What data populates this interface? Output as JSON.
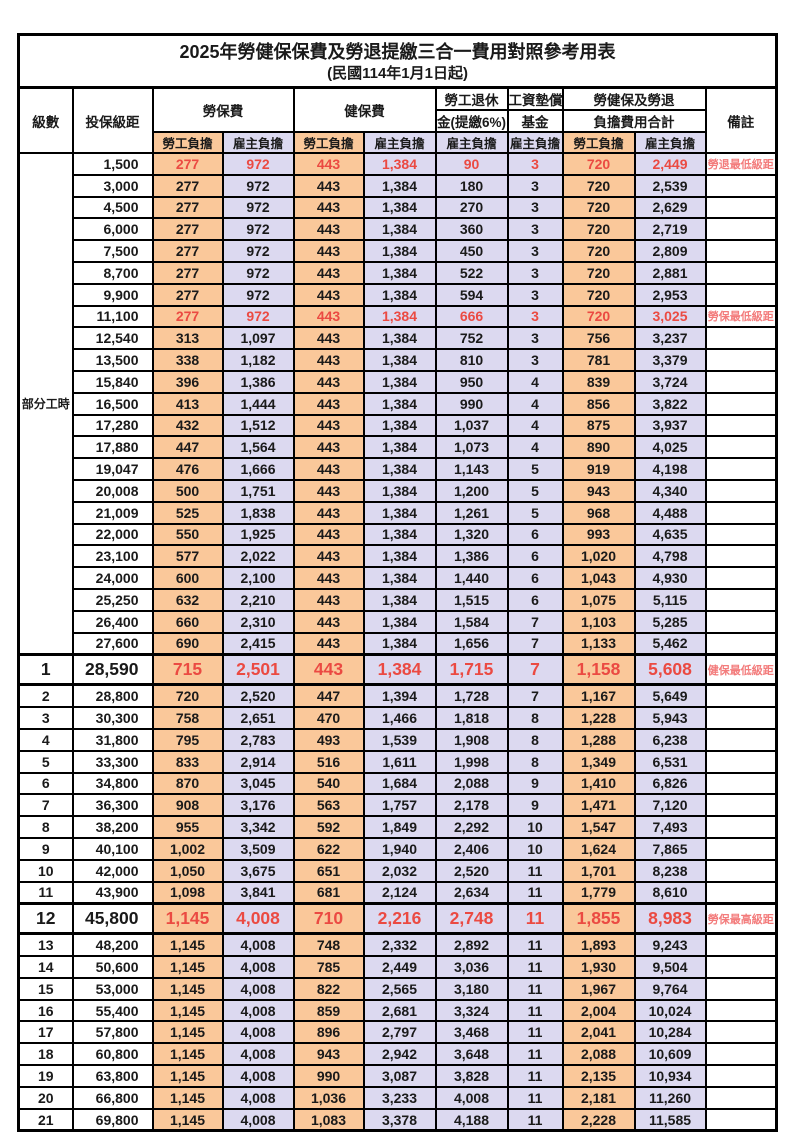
{
  "title": "2025年勞健保保費及勞退提繳三合一費用對照參考用表",
  "subtitle": "(民國114年1月1日起)",
  "columns": {
    "level": "級數",
    "bracket": "投保級距",
    "labor_insurance": "勞保費",
    "health_insurance": "健保費",
    "pension_line1": "勞工退休",
    "pension_line2": "金(提繳6%)",
    "wage_fund_line1": "工資墊償",
    "wage_fund_line2": "基金",
    "total_line1": "勞健保及勞退",
    "total_line2": "負擔費用合計",
    "remark": "備註",
    "employee": "勞工負擔",
    "employer": "雇主負擔"
  },
  "part_time": {
    "label": "部分工時",
    "rowspan": 23
  },
  "colors": {
    "employee_bg": "#FAC89A",
    "employer_bg": "#DCD9F0",
    "value_red": "#EB4A42",
    "remark_red": "#F37C7C"
  },
  "rows": [
    {
      "lv": "",
      "br": "1,500",
      "c": [
        "277",
        "972",
        "443",
        "1,384",
        "90",
        "3",
        "720",
        "2,449"
      ],
      "rm": "勞退最低級距",
      "red": true,
      "big": false
    },
    {
      "lv": "",
      "br": "3,000",
      "c": [
        "277",
        "972",
        "443",
        "1,384",
        "180",
        "3",
        "720",
        "2,539"
      ],
      "rm": "",
      "red": false,
      "big": false
    },
    {
      "lv": "",
      "br": "4,500",
      "c": [
        "277",
        "972",
        "443",
        "1,384",
        "270",
        "3",
        "720",
        "2,629"
      ],
      "rm": "",
      "red": false,
      "big": false
    },
    {
      "lv": "",
      "br": "6,000",
      "c": [
        "277",
        "972",
        "443",
        "1,384",
        "360",
        "3",
        "720",
        "2,719"
      ],
      "rm": "",
      "red": false,
      "big": false
    },
    {
      "lv": "",
      "br": "7,500",
      "c": [
        "277",
        "972",
        "443",
        "1,384",
        "450",
        "3",
        "720",
        "2,809"
      ],
      "rm": "",
      "red": false,
      "big": false
    },
    {
      "lv": "",
      "br": "8,700",
      "c": [
        "277",
        "972",
        "443",
        "1,384",
        "522",
        "3",
        "720",
        "2,881"
      ],
      "rm": "",
      "red": false,
      "big": false
    },
    {
      "lv": "",
      "br": "9,900",
      "c": [
        "277",
        "972",
        "443",
        "1,384",
        "594",
        "3",
        "720",
        "2,953"
      ],
      "rm": "",
      "red": false,
      "big": false
    },
    {
      "lv": "",
      "br": "11,100",
      "c": [
        "277",
        "972",
        "443",
        "1,384",
        "666",
        "3",
        "720",
        "3,025"
      ],
      "rm": "勞保最低級距",
      "red": true,
      "big": false
    },
    {
      "lv": "",
      "br": "12,540",
      "c": [
        "313",
        "1,097",
        "443",
        "1,384",
        "752",
        "3",
        "756",
        "3,237"
      ],
      "rm": "",
      "red": false,
      "big": false
    },
    {
      "lv": "",
      "br": "13,500",
      "c": [
        "338",
        "1,182",
        "443",
        "1,384",
        "810",
        "3",
        "781",
        "3,379"
      ],
      "rm": "",
      "red": false,
      "big": false
    },
    {
      "lv": "",
      "br": "15,840",
      "c": [
        "396",
        "1,386",
        "443",
        "1,384",
        "950",
        "4",
        "839",
        "3,724"
      ],
      "rm": "",
      "red": false,
      "big": false
    },
    {
      "lv": "",
      "br": "16,500",
      "c": [
        "413",
        "1,444",
        "443",
        "1,384",
        "990",
        "4",
        "856",
        "3,822"
      ],
      "rm": "",
      "red": false,
      "big": false
    },
    {
      "lv": "",
      "br": "17,280",
      "c": [
        "432",
        "1,512",
        "443",
        "1,384",
        "1,037",
        "4",
        "875",
        "3,937"
      ],
      "rm": "",
      "red": false,
      "big": false
    },
    {
      "lv": "",
      "br": "17,880",
      "c": [
        "447",
        "1,564",
        "443",
        "1,384",
        "1,073",
        "4",
        "890",
        "4,025"
      ],
      "rm": "",
      "red": false,
      "big": false
    },
    {
      "lv": "",
      "br": "19,047",
      "c": [
        "476",
        "1,666",
        "443",
        "1,384",
        "1,143",
        "5",
        "919",
        "4,198"
      ],
      "rm": "",
      "red": false,
      "big": false
    },
    {
      "lv": "",
      "br": "20,008",
      "c": [
        "500",
        "1,751",
        "443",
        "1,384",
        "1,200",
        "5",
        "943",
        "4,340"
      ],
      "rm": "",
      "red": false,
      "big": false
    },
    {
      "lv": "",
      "br": "21,009",
      "c": [
        "525",
        "1,838",
        "443",
        "1,384",
        "1,261",
        "5",
        "968",
        "4,488"
      ],
      "rm": "",
      "red": false,
      "big": false
    },
    {
      "lv": "",
      "br": "22,000",
      "c": [
        "550",
        "1,925",
        "443",
        "1,384",
        "1,320",
        "6",
        "993",
        "4,635"
      ],
      "rm": "",
      "red": false,
      "big": false
    },
    {
      "lv": "",
      "br": "23,100",
      "c": [
        "577",
        "2,022",
        "443",
        "1,384",
        "1,386",
        "6",
        "1,020",
        "4,798"
      ],
      "rm": "",
      "red": false,
      "big": false
    },
    {
      "lv": "",
      "br": "24,000",
      "c": [
        "600",
        "2,100",
        "443",
        "1,384",
        "1,440",
        "6",
        "1,043",
        "4,930"
      ],
      "rm": "",
      "red": false,
      "big": false
    },
    {
      "lv": "",
      "br": "25,250",
      "c": [
        "632",
        "2,210",
        "443",
        "1,384",
        "1,515",
        "6",
        "1,075",
        "5,115"
      ],
      "rm": "",
      "red": false,
      "big": false
    },
    {
      "lv": "",
      "br": "26,400",
      "c": [
        "660",
        "2,310",
        "443",
        "1,384",
        "1,584",
        "7",
        "1,103",
        "5,285"
      ],
      "rm": "",
      "red": false,
      "big": false
    },
    {
      "lv": "",
      "br": "27,600",
      "c": [
        "690",
        "2,415",
        "443",
        "1,384",
        "1,656",
        "7",
        "1,133",
        "5,462"
      ],
      "rm": "",
      "red": false,
      "big": false
    },
    {
      "lv": "1",
      "br": "28,590",
      "c": [
        "715",
        "2,501",
        "443",
        "1,384",
        "1,715",
        "7",
        "1,158",
        "5,608"
      ],
      "rm": "健保最低級距",
      "red": true,
      "big": true
    },
    {
      "lv": "2",
      "br": "28,800",
      "c": [
        "720",
        "2,520",
        "447",
        "1,394",
        "1,728",
        "7",
        "1,167",
        "5,649"
      ],
      "rm": "",
      "red": false,
      "big": false
    },
    {
      "lv": "3",
      "br": "30,300",
      "c": [
        "758",
        "2,651",
        "470",
        "1,466",
        "1,818",
        "8",
        "1,228",
        "5,943"
      ],
      "rm": "",
      "red": false,
      "big": false
    },
    {
      "lv": "4",
      "br": "31,800",
      "c": [
        "795",
        "2,783",
        "493",
        "1,539",
        "1,908",
        "8",
        "1,288",
        "6,238"
      ],
      "rm": "",
      "red": false,
      "big": false
    },
    {
      "lv": "5",
      "br": "33,300",
      "c": [
        "833",
        "2,914",
        "516",
        "1,611",
        "1,998",
        "8",
        "1,349",
        "6,531"
      ],
      "rm": "",
      "red": false,
      "big": false
    },
    {
      "lv": "6",
      "br": "34,800",
      "c": [
        "870",
        "3,045",
        "540",
        "1,684",
        "2,088",
        "9",
        "1,410",
        "6,826"
      ],
      "rm": "",
      "red": false,
      "big": false
    },
    {
      "lv": "7",
      "br": "36,300",
      "c": [
        "908",
        "3,176",
        "563",
        "1,757",
        "2,178",
        "9",
        "1,471",
        "7,120"
      ],
      "rm": "",
      "red": false,
      "big": false
    },
    {
      "lv": "8",
      "br": "38,200",
      "c": [
        "955",
        "3,342",
        "592",
        "1,849",
        "2,292",
        "10",
        "1,547",
        "7,493"
      ],
      "rm": "",
      "red": false,
      "big": false
    },
    {
      "lv": "9",
      "br": "40,100",
      "c": [
        "1,002",
        "3,509",
        "622",
        "1,940",
        "2,406",
        "10",
        "1,624",
        "7,865"
      ],
      "rm": "",
      "red": false,
      "big": false
    },
    {
      "lv": "10",
      "br": "42,000",
      "c": [
        "1,050",
        "3,675",
        "651",
        "2,032",
        "2,520",
        "11",
        "1,701",
        "8,238"
      ],
      "rm": "",
      "red": false,
      "big": false
    },
    {
      "lv": "11",
      "br": "43,900",
      "c": [
        "1,098",
        "3,841",
        "681",
        "2,124",
        "2,634",
        "11",
        "1,779",
        "8,610"
      ],
      "rm": "",
      "red": false,
      "big": false
    },
    {
      "lv": "12",
      "br": "45,800",
      "c": [
        "1,145",
        "4,008",
        "710",
        "2,216",
        "2,748",
        "11",
        "1,855",
        "8,983"
      ],
      "rm": "勞保最高級距",
      "red": true,
      "big": true
    },
    {
      "lv": "13",
      "br": "48,200",
      "c": [
        "1,145",
        "4,008",
        "748",
        "2,332",
        "2,892",
        "11",
        "1,893",
        "9,243"
      ],
      "rm": "",
      "red": false,
      "big": false
    },
    {
      "lv": "14",
      "br": "50,600",
      "c": [
        "1,145",
        "4,008",
        "785",
        "2,449",
        "3,036",
        "11",
        "1,930",
        "9,504"
      ],
      "rm": "",
      "red": false,
      "big": false
    },
    {
      "lv": "15",
      "br": "53,000",
      "c": [
        "1,145",
        "4,008",
        "822",
        "2,565",
        "3,180",
        "11",
        "1,967",
        "9,764"
      ],
      "rm": "",
      "red": false,
      "big": false
    },
    {
      "lv": "16",
      "br": "55,400",
      "c": [
        "1,145",
        "4,008",
        "859",
        "2,681",
        "3,324",
        "11",
        "2,004",
        "10,024"
      ],
      "rm": "",
      "red": false,
      "big": false
    },
    {
      "lv": "17",
      "br": "57,800",
      "c": [
        "1,145",
        "4,008",
        "896",
        "2,797",
        "3,468",
        "11",
        "2,041",
        "10,284"
      ],
      "rm": "",
      "red": false,
      "big": false
    },
    {
      "lv": "18",
      "br": "60,800",
      "c": [
        "1,145",
        "4,008",
        "943",
        "2,942",
        "3,648",
        "11",
        "2,088",
        "10,609"
      ],
      "rm": "",
      "red": false,
      "big": false
    },
    {
      "lv": "19",
      "br": "63,800",
      "c": [
        "1,145",
        "4,008",
        "990",
        "3,087",
        "3,828",
        "11",
        "2,135",
        "10,934"
      ],
      "rm": "",
      "red": false,
      "big": false
    },
    {
      "lv": "20",
      "br": "66,800",
      "c": [
        "1,145",
        "4,008",
        "1,036",
        "3,233",
        "4,008",
        "11",
        "2,181",
        "11,260"
      ],
      "rm": "",
      "red": false,
      "big": false
    },
    {
      "lv": "21",
      "br": "69,800",
      "c": [
        "1,145",
        "4,008",
        "1,083",
        "3,378",
        "4,188",
        "11",
        "2,228",
        "11,585"
      ],
      "rm": "",
      "red": false,
      "big": false
    }
  ]
}
